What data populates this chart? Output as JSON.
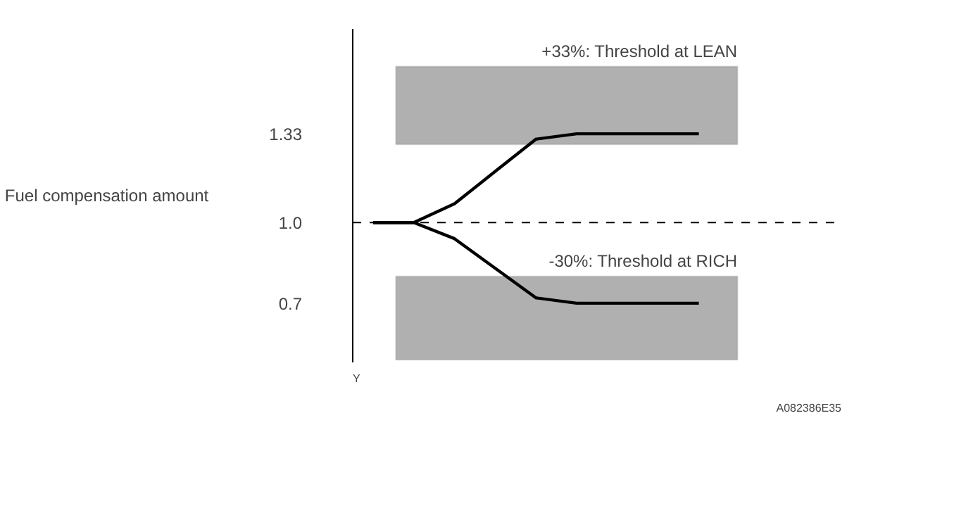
{
  "chart_data": {
    "type": "line",
    "ylabel": "Fuel compensation amount",
    "categories": [
      null,
      null,
      null,
      null,
      null,
      null,
      null,
      null,
      null,
      null,
      null,
      null
    ],
    "series": [
      {
        "color": "#000000",
        "values": [
          1.0,
          1.0,
          1.07,
          1.19,
          1.31,
          1.33,
          1.33,
          1.33,
          1.33,
          null,
          null,
          null
        ]
      },
      {
        "color": "#000000",
        "values": [
          1.0,
          1.0,
          0.94,
          0.83,
          0.72,
          0.7,
          0.7,
          0.7,
          0.7,
          null,
          null,
          null
        ]
      }
    ],
    "ylim": [
      0.48,
      1.72
    ],
    "yticks": [
      0.7,
      {
        "value": 1.0,
        "label": "1.0"
      },
      1.33
    ],
    "ref_lines": [
      {
        "axis": "y",
        "value": 1.0,
        "line_style": "dashed",
        "color": "#000000"
      }
    ],
    "bands": [
      {
        "axis": "y",
        "from": 1.29,
        "to": 1.58,
        "label": "+33%: Threshold at LEAN",
        "color": "#b0b0b0"
      },
      {
        "axis": "y",
        "from": 0.49,
        "to": 0.8,
        "label": "-30%: Threshold at RICH",
        "color": "#b0b0b0"
      }
    ],
    "annotations": [
      "Y",
      "A082386E35"
    ],
    "tick_labels": "y",
    "grid": false,
    "marker": "none",
    "line_style": "solid"
  }
}
